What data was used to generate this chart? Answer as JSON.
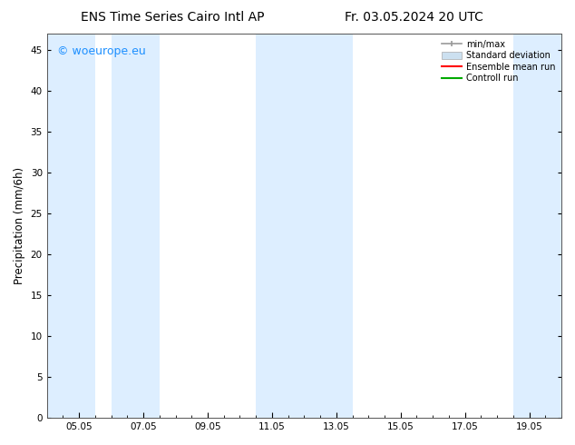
{
  "title_left": "ENS Time Series Cairo Intl AP",
  "title_right": "Fr. 03.05.2024 20 UTC",
  "ylabel": "Precipitation (mm/6h)",
  "bg_color": "#ffffff",
  "plot_bg_color": "#ffffff",
  "ylim": [
    0,
    47
  ],
  "yticks": [
    0,
    5,
    10,
    15,
    20,
    25,
    30,
    35,
    40,
    45
  ],
  "xtick_labels": [
    "05.05",
    "07.05",
    "09.05",
    "11.05",
    "13.05",
    "15.05",
    "17.05",
    "19.05"
  ],
  "xtick_positions": [
    2,
    6,
    10,
    14,
    18,
    22,
    26,
    30
  ],
  "xlim": [
    0,
    32
  ],
  "shaded_bands": [
    {
      "x_start": 0,
      "x_end": 3,
      "color": "#ddeeff"
    },
    {
      "x_start": 4,
      "x_end": 7,
      "color": "#ddeeff"
    },
    {
      "x_start": 13,
      "x_end": 19,
      "color": "#ddeeff"
    },
    {
      "x_start": 29,
      "x_end": 32,
      "color": "#ddeeff"
    }
  ],
  "watermark_text": "© woeurope.eu",
  "watermark_color": "#1e90ff",
  "watermark_fontsize": 9,
  "legend_entries": [
    {
      "label": "min/max",
      "color": "#999999",
      "type": "errorbar"
    },
    {
      "label": "Standard deviation",
      "color": "#cce0f0",
      "type": "patch"
    },
    {
      "label": "Ensemble mean run",
      "color": "#ff0000",
      "type": "line",
      "linewidth": 1.5
    },
    {
      "label": "Controll run",
      "color": "#00aa00",
      "type": "line",
      "linewidth": 1.5
    }
  ],
  "title_fontsize": 10,
  "tick_fontsize": 7.5,
  "ylabel_fontsize": 8.5
}
